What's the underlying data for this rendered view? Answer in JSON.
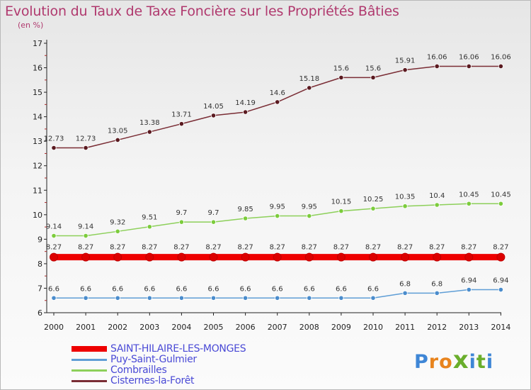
{
  "header": {
    "title": "Evolution du Taux de Taxe Foncière sur les Propriétés Bâties",
    "unit": "(en %)"
  },
  "logo": {
    "letters": [
      "P",
      "r",
      "o",
      "x",
      "i",
      "t",
      "i"
    ],
    "colors": [
      "#3e86d6",
      "#e8841e",
      "#e8841e",
      "#6aae2c",
      "#3e86d6",
      "#6aae2c",
      "#3e86d6"
    ]
  },
  "legend": {
    "items": [
      {
        "label": "SAINT-HILAIRE-LES-MONGES",
        "color": "#ee0000",
        "thickness": "thick"
      },
      {
        "label": "Puy-Saint-Gulmier",
        "color": "#5f9ed6",
        "thickness": "thin"
      },
      {
        "label": "Combrailles",
        "color": "#8dd05a",
        "thickness": "thin"
      },
      {
        "label": "Cisternes-la-Forêt",
        "color": "#7a2d35",
        "thickness": "thin"
      }
    ]
  },
  "chart_data": {
    "type": "line",
    "title": "Evolution du Taux de Taxe Foncière sur les Propriétés Bâties",
    "ylabel": "(en %)",
    "xlabel": "",
    "x": [
      "2000",
      "2001",
      "2002",
      "2003",
      "2004",
      "2005",
      "2006",
      "2007",
      "2008",
      "2009",
      "2010",
      "2011",
      "2012",
      "2013",
      "2014"
    ],
    "ylim": [
      6,
      17
    ],
    "yticks": [
      "6",
      "7",
      "8",
      "9",
      "10",
      "11",
      "12",
      "13",
      "14",
      "15",
      "16",
      "17"
    ],
    "grid": false,
    "legend_position": "bottom-left",
    "series": [
      {
        "name": "Cisternes-la-Forêt",
        "color": "#7a2d35",
        "marker": "#5a1a20",
        "values": [
          12.73,
          12.73,
          13.05,
          13.38,
          13.71,
          14.05,
          14.19,
          14.6,
          15.18,
          15.6,
          15.6,
          15.91,
          16.06,
          16.06,
          16.06
        ],
        "labels": [
          "12.73",
          "12.73",
          "13.05",
          "13.38",
          "13.71",
          "14.05",
          "14.19",
          "14.6",
          "15.18",
          "15.6",
          "15.6",
          "15.91",
          "16.06",
          "16.06",
          "16.06"
        ]
      },
      {
        "name": "Combrailles",
        "color": "#8dd05a",
        "marker": "#7ccc3c",
        "values": [
          9.14,
          9.14,
          9.32,
          9.51,
          9.7,
          9.7,
          9.85,
          9.95,
          9.95,
          10.15,
          10.25,
          10.35,
          10.4,
          10.45,
          10.45
        ],
        "labels": [
          "9.14",
          "9.14",
          "9.32",
          "9.51",
          "9.7",
          "9.7",
          "9.85",
          "9.95",
          "9.95",
          "10.15",
          "10.25",
          "10.35",
          "10.4",
          "10.45",
          "10.45"
        ]
      },
      {
        "name": "SAINT-HILAIRE-LES-MONGES",
        "color": "#ee0000",
        "marker": "#dd0000",
        "thick": true,
        "values": [
          8.27,
          8.27,
          8.27,
          8.27,
          8.27,
          8.27,
          8.27,
          8.27,
          8.27,
          8.27,
          8.27,
          8.27,
          8.27,
          8.27,
          8.27
        ],
        "labels": [
          "8.27",
          "8.27",
          "8.27",
          "8.27",
          "8.27",
          "8.27",
          "8.27",
          "8.27",
          "8.27",
          "8.27",
          "8.27",
          "8.27",
          "8.27",
          "8.27",
          "8.27"
        ]
      },
      {
        "name": "Puy-Saint-Gulmier",
        "color": "#5f9ed6",
        "marker": "#4a8ccc",
        "values": [
          6.6,
          6.6,
          6.6,
          6.6,
          6.6,
          6.6,
          6.6,
          6.6,
          6.6,
          6.6,
          6.6,
          6.8,
          6.8,
          6.94,
          6.94
        ],
        "labels": [
          "6.6",
          "6.6",
          "6.6",
          "6.6",
          "6.6",
          "6.6",
          "6.6",
          "6.6",
          "6.6",
          "6.6",
          "6.6",
          "6.8",
          "6.8",
          "6.94",
          "6.94"
        ]
      }
    ]
  }
}
